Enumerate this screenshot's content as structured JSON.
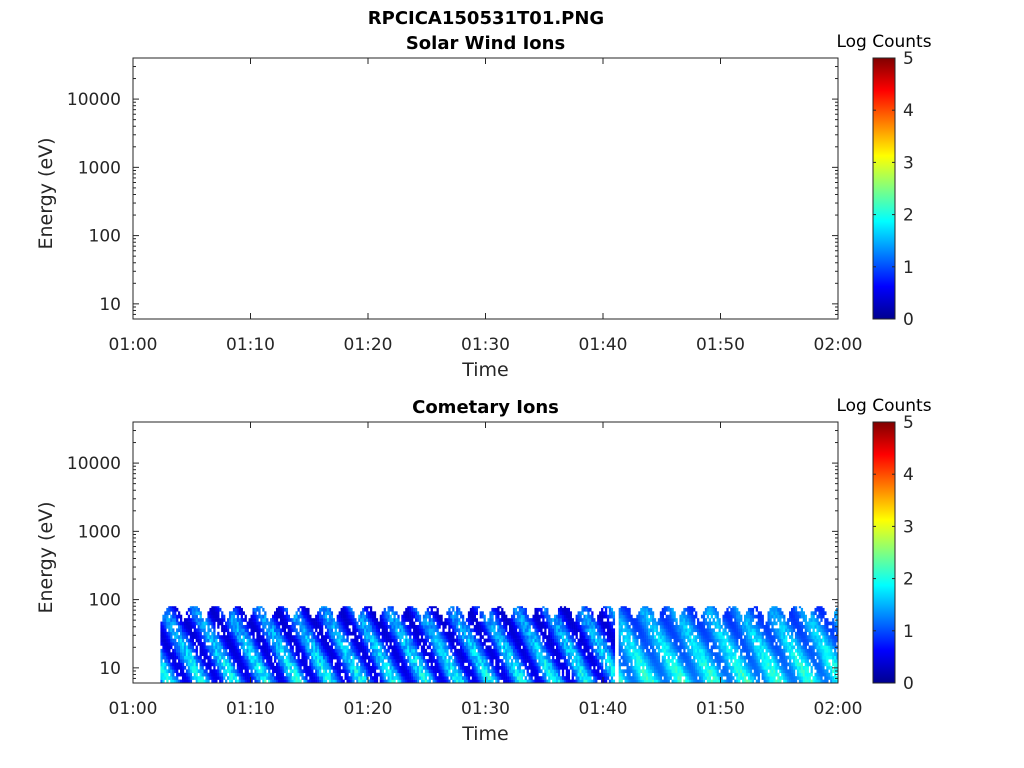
{
  "figure_title": "RPCICA150531T01.PNG",
  "colorscale_colors": [
    "#00008f",
    "#0000ff",
    "#0080ff",
    "#00ffff",
    "#80ff80",
    "#ffff00",
    "#ff8000",
    "#ff0000",
    "#800000"
  ],
  "chart_data": [
    {
      "type": "heatmap",
      "title": "Solar Wind Ions",
      "xlabel": "Time",
      "ylabel": "Energy (eV)",
      "x_range": [
        "01:00",
        "02:00"
      ],
      "x_ticks": [
        "01:00",
        "01:10",
        "01:20",
        "01:30",
        "01:40",
        "01:50",
        "02:00"
      ],
      "y_scale": "log",
      "y_range": [
        6,
        40000
      ],
      "y_ticks": [
        10,
        100,
        1000,
        10000
      ],
      "y_tick_labels": [
        "10",
        "100",
        "1000",
        "10000"
      ],
      "colorbar": {
        "label": "Log Counts",
        "range": [
          0,
          5
        ],
        "ticks": [
          "0",
          "1",
          "2",
          "3",
          "4",
          "5"
        ]
      },
      "data_segments": []
    },
    {
      "type": "heatmap",
      "title": "Cometary Ions",
      "xlabel": "Time",
      "ylabel": "Energy (eV)",
      "x_range": [
        "01:00",
        "02:00"
      ],
      "x_ticks": [
        "01:00",
        "01:10",
        "01:20",
        "01:30",
        "01:40",
        "01:50",
        "02:00"
      ],
      "y_scale": "log",
      "y_range": [
        6,
        40000
      ],
      "y_ticks": [
        10,
        100,
        1000,
        10000
      ],
      "y_tick_labels": [
        "10",
        "100",
        "1000",
        "10000"
      ],
      "colorbar": {
        "label": "Log Counts",
        "range": [
          0,
          5
        ],
        "ticks": [
          "0",
          "1",
          "2",
          "3",
          "4",
          "5"
        ]
      },
      "data_segments": [
        {
          "start": "01:02:20",
          "end": "01:41:00",
          "energy_min_eV": 6,
          "energy_max_eV": 80,
          "typical_log_counts": [
            0.5,
            2.3
          ]
        },
        {
          "start": "01:41:20",
          "end": "02:00:00",
          "energy_min_eV": 6,
          "energy_max_eV": 80,
          "typical_log_counts": [
            1.2,
            2.4
          ]
        }
      ]
    }
  ]
}
